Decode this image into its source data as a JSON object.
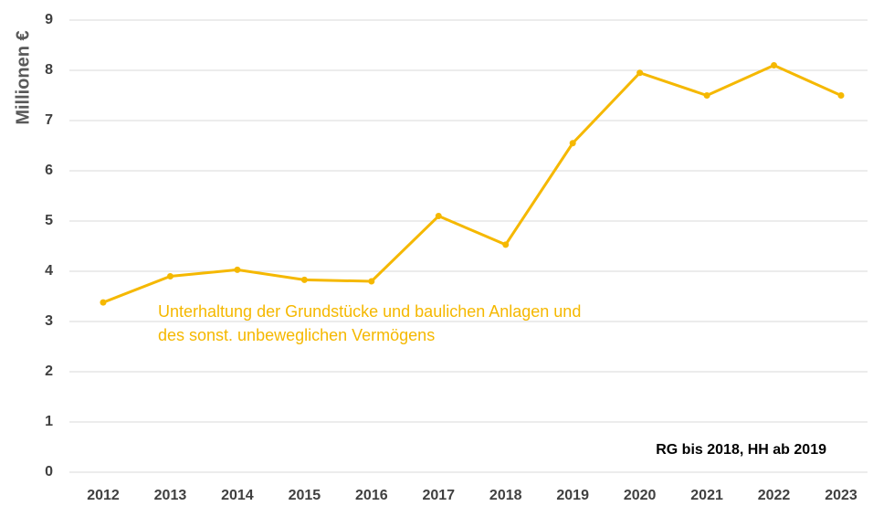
{
  "chart_data": {
    "type": "line",
    "y_label": "Millionen €",
    "categories": [
      "2012",
      "2013",
      "2014",
      "2015",
      "2016",
      "2017",
      "2018",
      "2019",
      "2020",
      "2021",
      "2022",
      "2023"
    ],
    "series": [
      {
        "name": "Unterhaltung der Grundstücke und baulichen Anlagen und des sonst. unbeweglichen Vermögens",
        "color": "#f5b800",
        "values": [
          3.38,
          3.9,
          4.03,
          3.83,
          3.8,
          5.1,
          4.53,
          6.55,
          7.95,
          7.5,
          8.1,
          7.5
        ]
      }
    ],
    "annotation": "RG bis 2018, HH ab 2019",
    "ylim": [
      0,
      9
    ],
    "yticks": [
      0,
      1,
      2,
      3,
      4,
      5,
      6,
      7,
      8,
      9
    ],
    "grid": true
  }
}
